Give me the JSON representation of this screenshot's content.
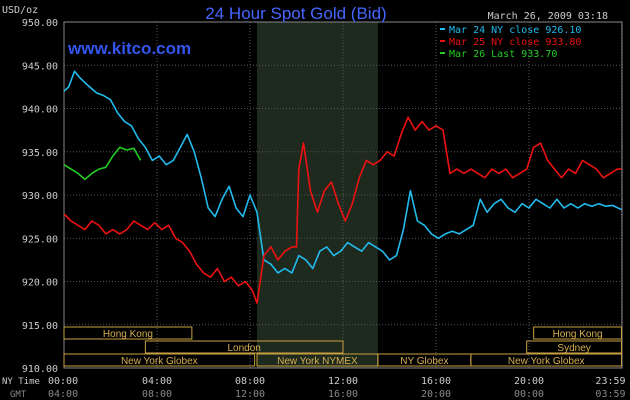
{
  "chart_data": {
    "type": "line",
    "title": "24 Hour Spot Gold (Bid)",
    "ylabel": "USD/oz",
    "watermark": "www.kitco.com",
    "timestamp": "March 26, 2009 03:18",
    "ylim": [
      910,
      950
    ],
    "xlim": [
      0,
      24
    ],
    "y_ticks": [
      "950.00",
      "945.00",
      "940.00",
      "935.00",
      "930.00",
      "925.00",
      "920.00",
      "915.00",
      "910.00"
    ],
    "x_ticks": [
      "00:00",
      "04:00",
      "08:00",
      "12:00",
      "16:00",
      "20:00",
      "23:59"
    ],
    "x_ticks_gmt": [
      "04:00",
      "08:00",
      "12:00",
      "16:00",
      "20:00",
      "00:00",
      "03:59"
    ],
    "time_row_labels": {
      "ny": "NY Time",
      "gmt": "GMT"
    },
    "grid": true,
    "legend_position": "top-right",
    "background": "#000000",
    "grid_color": "#555555",
    "shaded_region": {
      "x_start": 8.3,
      "x_end": 13.5,
      "color": "#1f2a1f"
    },
    "series": [
      {
        "name": "Mar 24 NY close 926.10",
        "color": "#22bbee",
        "x": [
          0,
          0.2,
          0.45,
          0.7,
          0.9,
          1.1,
          1.4,
          1.7,
          2.0,
          2.3,
          2.6,
          2.9,
          3.2,
          3.5,
          3.8,
          4.1,
          4.4,
          4.7,
          5.0,
          5.3,
          5.6,
          5.9,
          6.2,
          6.5,
          6.8,
          7.1,
          7.4,
          7.7,
          8.0,
          8.3,
          8.6,
          8.9,
          9.2,
          9.5,
          9.8,
          10.1,
          10.4,
          10.7,
          11.0,
          11.3,
          11.6,
          11.9,
          12.2,
          12.5,
          12.8,
          13.1,
          13.4,
          13.7,
          14.0,
          14.3,
          14.6,
          14.9,
          15.2,
          15.5,
          15.8,
          16.1,
          16.4,
          16.7,
          17.0,
          17.3,
          17.6,
          17.9,
          18.2,
          18.5,
          18.8,
          19.1,
          19.4,
          19.7,
          20.0,
          20.3,
          20.6,
          20.9,
          21.2,
          21.5,
          21.8,
          22.1,
          22.4,
          22.7,
          23.0,
          23.3,
          23.6,
          23.98
        ],
        "values": [
          942.0,
          942.5,
          944.3,
          943.5,
          943.0,
          942.5,
          941.8,
          941.5,
          941.0,
          939.5,
          938.5,
          938.0,
          936.5,
          935.5,
          934.0,
          934.5,
          933.5,
          934.0,
          935.5,
          937.0,
          935.0,
          932.0,
          928.5,
          927.5,
          929.5,
          931.0,
          928.5,
          927.5,
          930.0,
          928.0,
          922.5,
          922.0,
          921.0,
          921.5,
          921.0,
          923.0,
          922.5,
          921.5,
          923.5,
          924.0,
          923.0,
          923.5,
          924.5,
          924.0,
          923.5,
          924.5,
          924.0,
          923.5,
          922.5,
          923.0,
          926.0,
          930.5,
          927.0,
          926.5,
          925.5,
          925.0,
          925.5,
          925.8,
          925.5,
          926.0,
          926.5,
          929.5,
          928.0,
          929.0,
          929.5,
          928.5,
          928.0,
          929.0,
          928.5,
          929.5,
          929.0,
          928.5,
          929.5,
          928.5,
          929.0,
          928.5,
          929.0,
          928.7,
          929.0,
          928.7,
          928.8,
          928.3
        ]
      },
      {
        "name": "Mar 25 NY close 933.80",
        "color": "#ee1111",
        "x": [
          0,
          0.3,
          0.6,
          0.9,
          1.2,
          1.5,
          1.8,
          2.1,
          2.4,
          2.7,
          3.0,
          3.3,
          3.6,
          3.9,
          4.2,
          4.5,
          4.8,
          5.1,
          5.4,
          5.7,
          6.0,
          6.3,
          6.6,
          6.9,
          7.2,
          7.5,
          7.8,
          8.1,
          8.3,
          8.6,
          8.9,
          9.2,
          9.5,
          9.8,
          10.0,
          10.1,
          10.3,
          10.6,
          10.9,
          11.2,
          11.5,
          11.8,
          12.1,
          12.4,
          12.7,
          13.0,
          13.3,
          13.6,
          13.9,
          14.2,
          14.5,
          14.8,
          15.1,
          15.4,
          15.7,
          16.0,
          16.3,
          16.6,
          16.9,
          17.2,
          17.5,
          17.8,
          18.1,
          18.4,
          18.7,
          19.0,
          19.3,
          19.6,
          19.9,
          20.2,
          20.5,
          20.8,
          21.1,
          21.4,
          21.7,
          22.0,
          22.3,
          22.6,
          22.9,
          23.2,
          23.5,
          23.8,
          23.98
        ],
        "values": [
          927.8,
          927.0,
          926.5,
          926.0,
          927.0,
          926.5,
          925.5,
          926.0,
          925.5,
          926.0,
          927.0,
          926.5,
          926.0,
          926.8,
          926.0,
          926.5,
          925.0,
          924.5,
          923.5,
          922.0,
          921.0,
          920.5,
          921.5,
          920.0,
          920.5,
          919.5,
          920.0,
          919.0,
          917.5,
          923.0,
          924.0,
          922.5,
          923.5,
          924.0,
          924.0,
          933.0,
          936.0,
          930.5,
          928.0,
          930.5,
          931.5,
          929.0,
          927.0,
          929.0,
          932.0,
          934.0,
          933.5,
          934.0,
          935.0,
          934.5,
          937.0,
          939.0,
          937.5,
          938.5,
          937.5,
          938.0,
          937.5,
          932.5,
          933.0,
          932.5,
          933.0,
          932.5,
          932.0,
          933.0,
          932.5,
          933.0,
          932.0,
          932.5,
          933.0,
          935.5,
          936.0,
          934.0,
          933.0,
          932.0,
          933.0,
          932.5,
          934.0,
          933.5,
          933.0,
          932.0,
          932.5,
          933.0,
          933.0
        ]
      },
      {
        "name": "Mar 26 Last 933.70",
        "color": "#22cc22",
        "x": [
          0,
          0.3,
          0.6,
          0.9,
          1.2,
          1.5,
          1.8,
          2.1,
          2.4,
          2.7,
          3.0,
          3.3
        ],
        "values": [
          933.5,
          933.0,
          932.5,
          931.8,
          932.5,
          933.0,
          933.2,
          934.5,
          935.5,
          935.2,
          935.4,
          934.0
        ]
      }
    ],
    "sessions": [
      {
        "label": "Hong Kong",
        "x_start": 0,
        "x_end": 5.5,
        "row": 0
      },
      {
        "label": "Hong Kong",
        "x_start": 20.2,
        "x_end": 23.98,
        "row": 0
      },
      {
        "label": "London",
        "x_start": 3.5,
        "x_end": 12.0,
        "row": 1
      },
      {
        "label": "Sydney",
        "x_start": 19.9,
        "x_end": 23.98,
        "row": 1
      },
      {
        "label": "New York Globex",
        "x_start": 0,
        "x_end": 8.2,
        "row": 2
      },
      {
        "label": "New York NYMEX",
        "x_start": 8.3,
        "x_end": 13.5,
        "row": 2
      },
      {
        "label": "NY Globex",
        "x_start": 13.5,
        "x_end": 17.5,
        "row": 2
      },
      {
        "label": "New York Globex",
        "x_start": 17.5,
        "x_end": 23.98,
        "row": 2
      }
    ]
  }
}
